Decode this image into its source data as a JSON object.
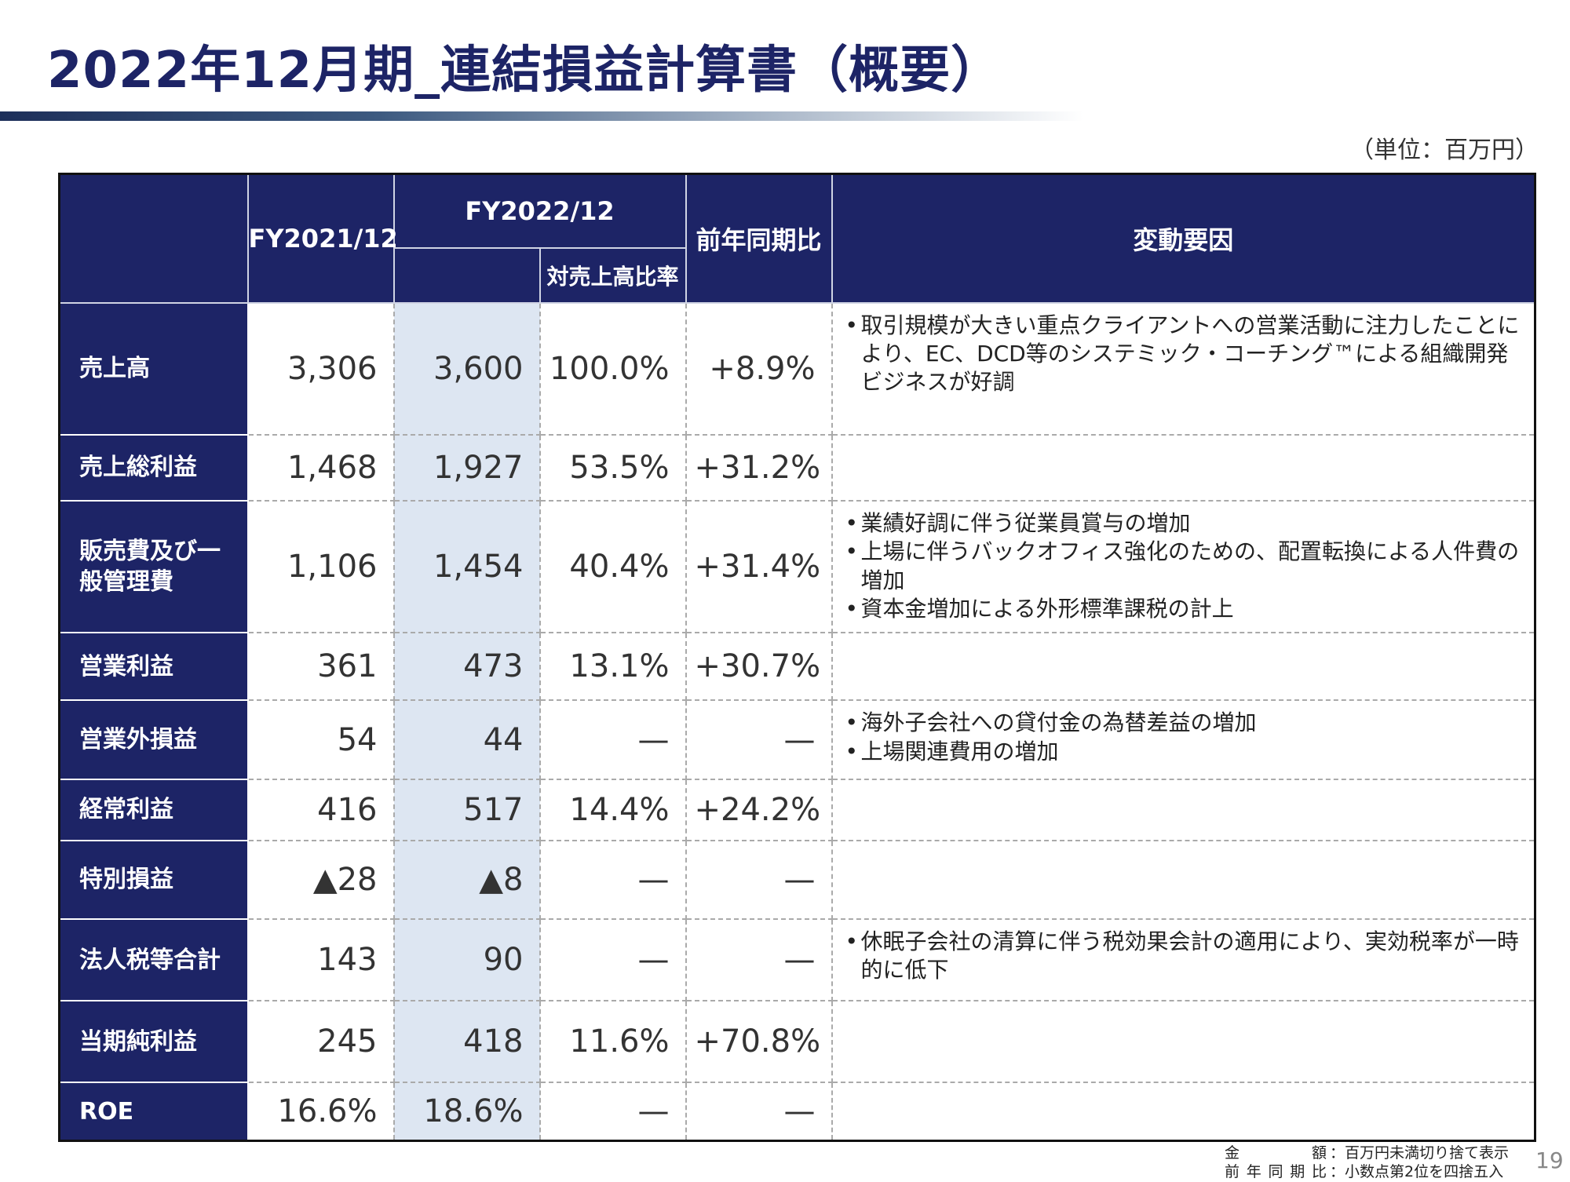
{
  "page": {
    "title": "2022年12月期_連結損益計算書（概要）",
    "unit": "（単位：百万円）",
    "page_number": "19"
  },
  "table": {
    "headers": {
      "fy2021": "FY2021/12",
      "fy2022": "FY2022/12",
      "ratio": "対売上高比率",
      "yoy": "前年同期比",
      "factors": "変動要因"
    },
    "rows": [
      {
        "label": "売上高",
        "fy2021": "3,306",
        "fy2022": "3,600",
        "ratio": "100.0%",
        "yoy": "+8.9%",
        "reasons": [
          "取引規模が大きい重点クライアントへの営業活動に注力したことにより、EC、DCD等のシステミック・コーチング™による組織開発ビジネスが好調"
        ]
      },
      {
        "label": "売上総利益",
        "fy2021": "1,468",
        "fy2022": "1,927",
        "ratio": "53.5%",
        "yoy": "+31.2%",
        "reasons": []
      },
      {
        "label": "販売費及び一般管理費",
        "fy2021": "1,106",
        "fy2022": "1,454",
        "ratio": "40.4%",
        "yoy": "+31.4%",
        "reasons": [
          "業績好調に伴う従業員賞与の増加",
          "上場に伴うバックオフィス強化のための、配置転換による人件費の増加",
          "資本金増加による外形標準課税の計上"
        ]
      },
      {
        "label": "営業利益",
        "fy2021": "361",
        "fy2022": "473",
        "ratio": "13.1%",
        "yoy": "+30.7%",
        "reasons": []
      },
      {
        "label": "営業外損益",
        "fy2021": "54",
        "fy2022": "44",
        "ratio": "—",
        "yoy": "—",
        "reasons": [
          "海外子会社への貸付金の為替差益の増加",
          "上場関連費用の増加"
        ]
      },
      {
        "label": "経常利益",
        "fy2021": "416",
        "fy2022": "517",
        "ratio": "14.4%",
        "yoy": "+24.2%",
        "reasons": []
      },
      {
        "label": "特別損益",
        "fy2021": "▲28",
        "fy2022": "▲8",
        "ratio": "—",
        "yoy": "—",
        "reasons": []
      },
      {
        "label": "法人税等合計",
        "fy2021": "143",
        "fy2022": "90",
        "ratio": "—",
        "yoy": "—",
        "reasons": [
          "休眠子会社の清算に伴う税効果会計の適用により、実効税率が一時的に低下"
        ]
      },
      {
        "label": "当期純利益",
        "fy2021": "245",
        "fy2022": "418",
        "ratio": "11.6%",
        "yoy": "+70.8%",
        "reasons": []
      },
      {
        "label": "ROE",
        "fy2021": "16.6%",
        "fy2022": "18.6%",
        "ratio": "—",
        "yoy": "—",
        "reasons": []
      }
    ]
  },
  "footnotes": [
    {
      "label": "金額",
      "text": "：百万円未満切り捨て表示"
    },
    {
      "label": "前年同期比",
      "text": "：小数点第2位を四捨五入"
    }
  ]
}
